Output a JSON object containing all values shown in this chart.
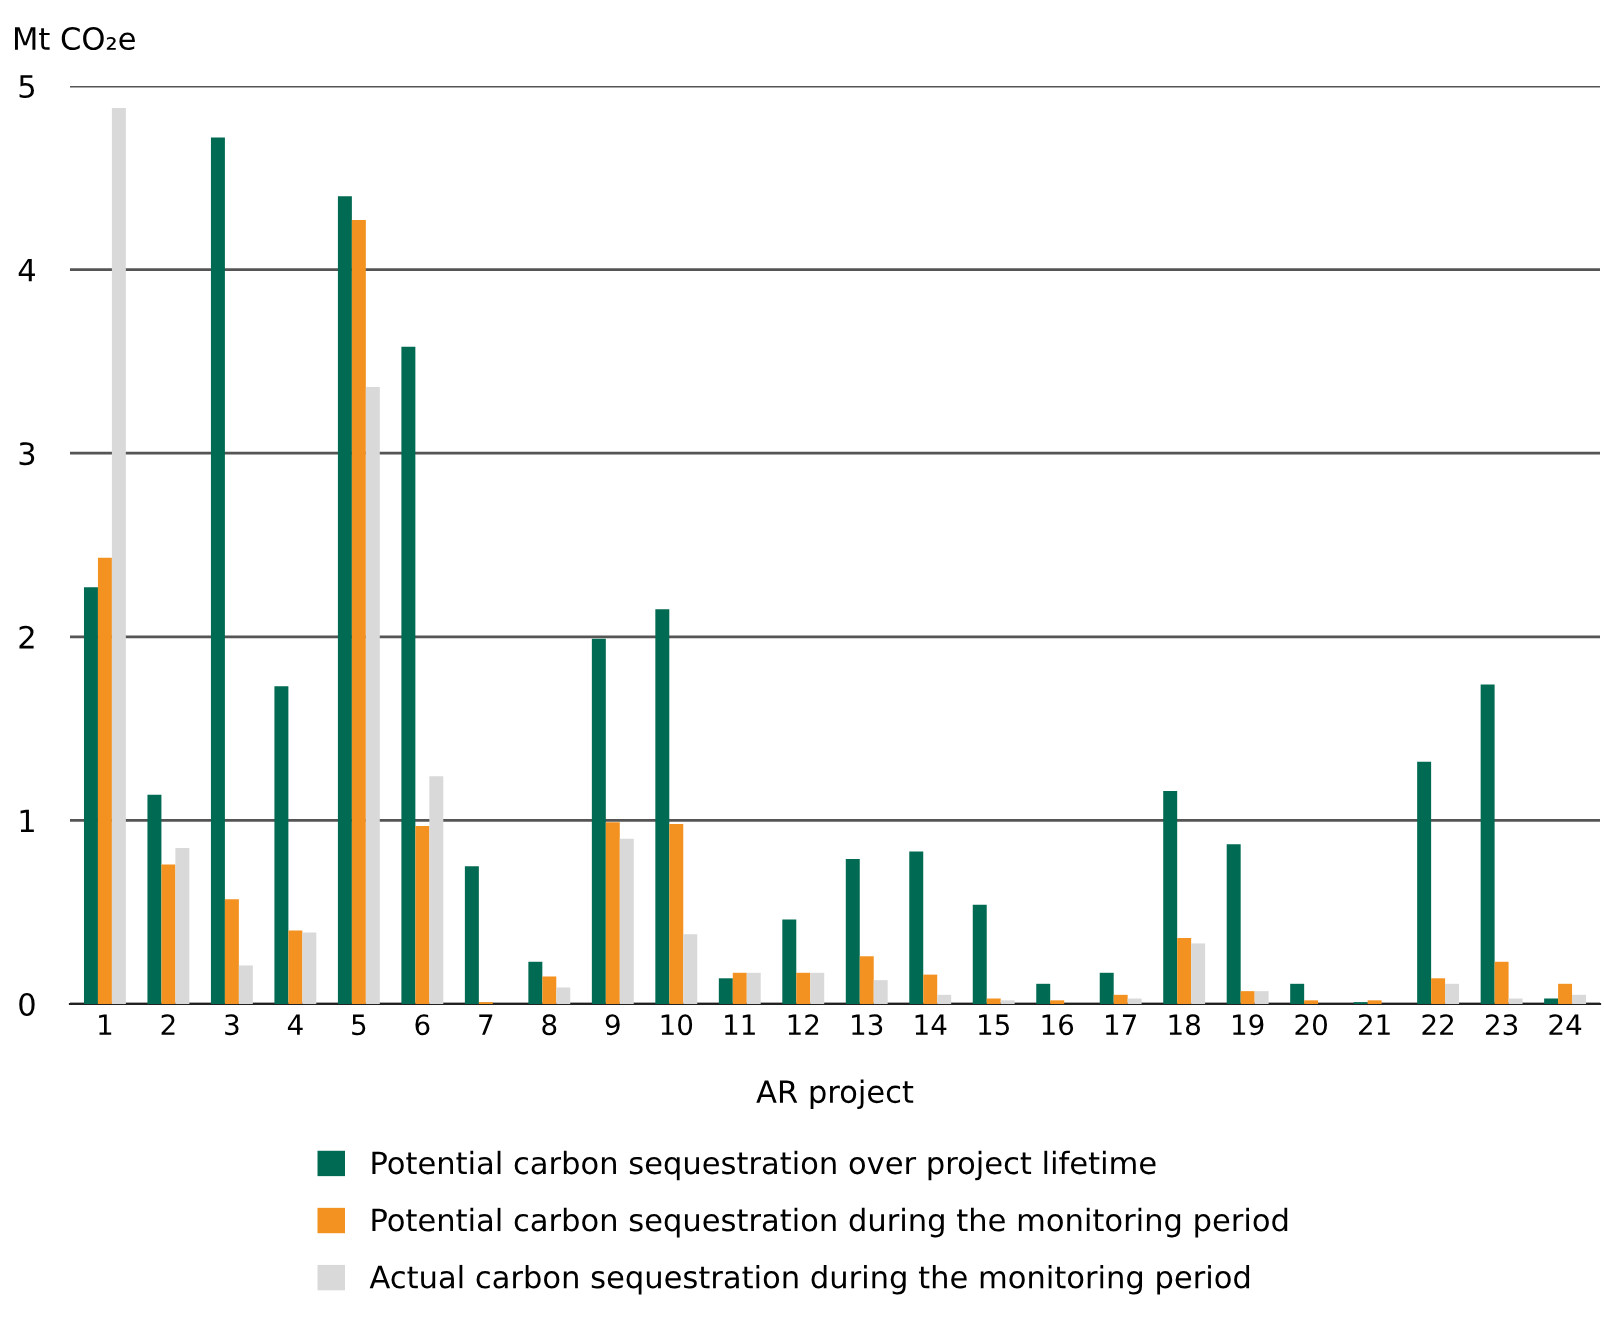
{
  "chart_data": {
    "type": "bar",
    "ylabel": "Mt CO₂e",
    "xlabel": "AR project",
    "categories": [
      "1",
      "2",
      "3",
      "4",
      "5",
      "6",
      "7",
      "8",
      "9",
      "10",
      "11",
      "12",
      "13",
      "14",
      "15",
      "16",
      "17",
      "18",
      "19",
      "20",
      "21",
      "22",
      "23",
      "24"
    ],
    "series": [
      {
        "name": "Potential carbon sequestration over project lifetime",
        "color": "#006a52",
        "values": [
          2.27,
          1.14,
          4.72,
          1.73,
          4.4,
          3.58,
          0.75,
          0.23,
          1.99,
          2.15,
          0.14,
          0.46,
          0.79,
          0.83,
          0.54,
          0.11,
          0.17,
          1.16,
          0.87,
          0.11,
          0.01,
          1.32,
          1.74,
          0.03
        ]
      },
      {
        "name": "Potential carbon sequestration during the monitoring period",
        "color": "#f39220",
        "values": [
          2.43,
          0.76,
          0.57,
          0.4,
          4.27,
          0.97,
          0.01,
          0.15,
          0.99,
          0.98,
          0.17,
          0.17,
          0.26,
          0.16,
          0.03,
          0.02,
          0.05,
          0.36,
          0.07,
          0.02,
          0.02,
          0.14,
          0.23,
          0.11
        ]
      },
      {
        "name": "Actual carbon sequestration during the monitoring period",
        "color": "#d9d9d9",
        "values": [
          4.88,
          0.85,
          0.21,
          0.39,
          3.36,
          1.24,
          null,
          0.09,
          0.9,
          0.38,
          0.17,
          0.17,
          0.13,
          0.05,
          0.02,
          null,
          0.03,
          0.33,
          0.07,
          null,
          null,
          0.11,
          0.03,
          0.05
        ]
      }
    ],
    "ylim": [
      0,
      5
    ],
    "yticks": [
      0,
      1,
      2,
      3,
      4,
      5
    ],
    "grid": "y",
    "legend": "bottom"
  }
}
